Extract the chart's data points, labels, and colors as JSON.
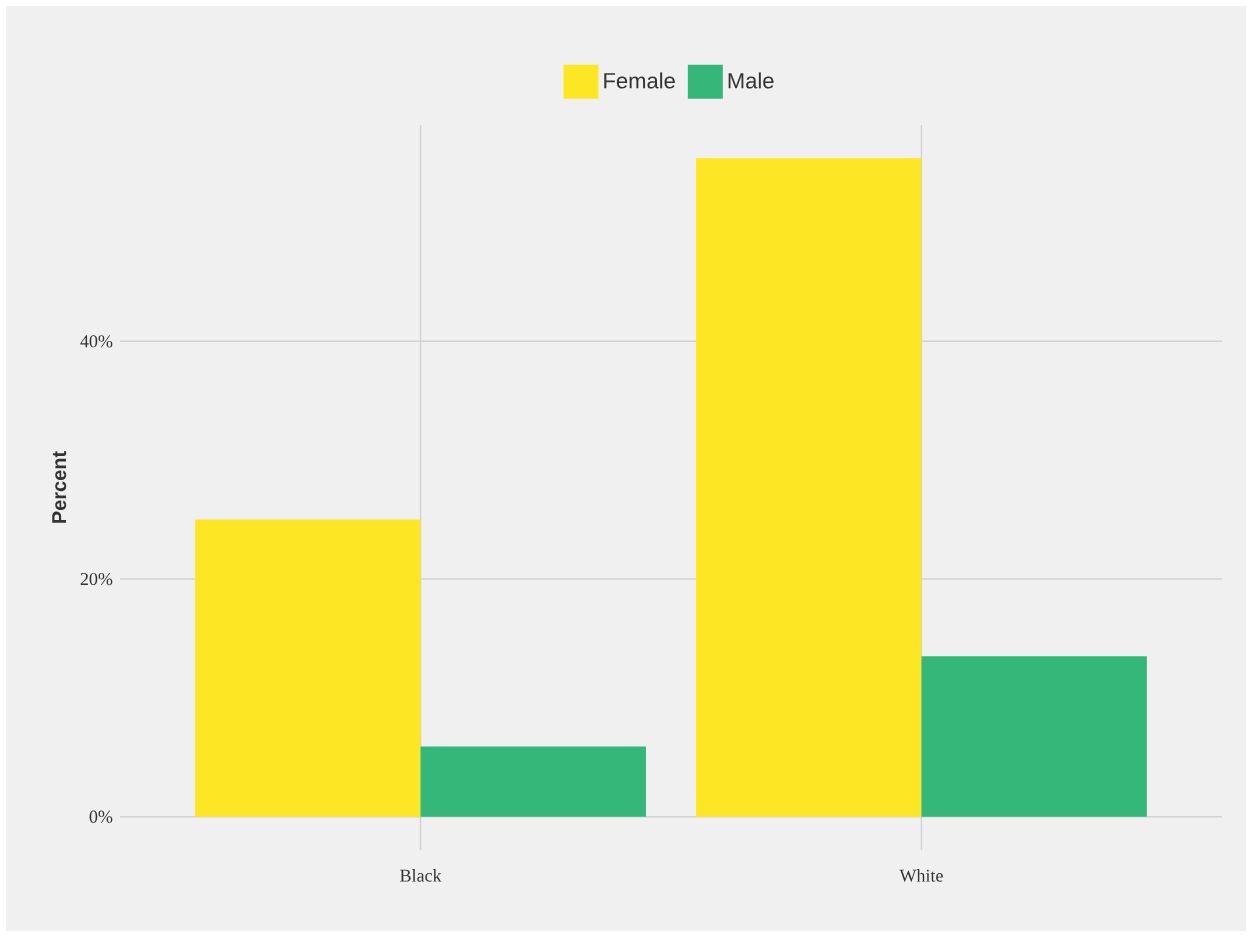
{
  "chart_data": {
    "type": "bar",
    "ylabel": "Percent",
    "categories": [
      "Black",
      "White"
    ],
    "series": [
      {
        "name": "Female",
        "color": "#fde725",
        "values": [
          25.0,
          55.4
        ]
      },
      {
        "name": "Male",
        "color": "#35b779",
        "values": [
          5.9,
          13.5
        ]
      }
    ],
    "ylim": [
      -2.8,
      58.2
    ],
    "yticks": [
      {
        "value": 0,
        "label": "0%"
      },
      {
        "value": 20,
        "label": "20%"
      },
      {
        "value": 40,
        "label": "40%"
      }
    ],
    "grid": true,
    "legend": "top"
  }
}
